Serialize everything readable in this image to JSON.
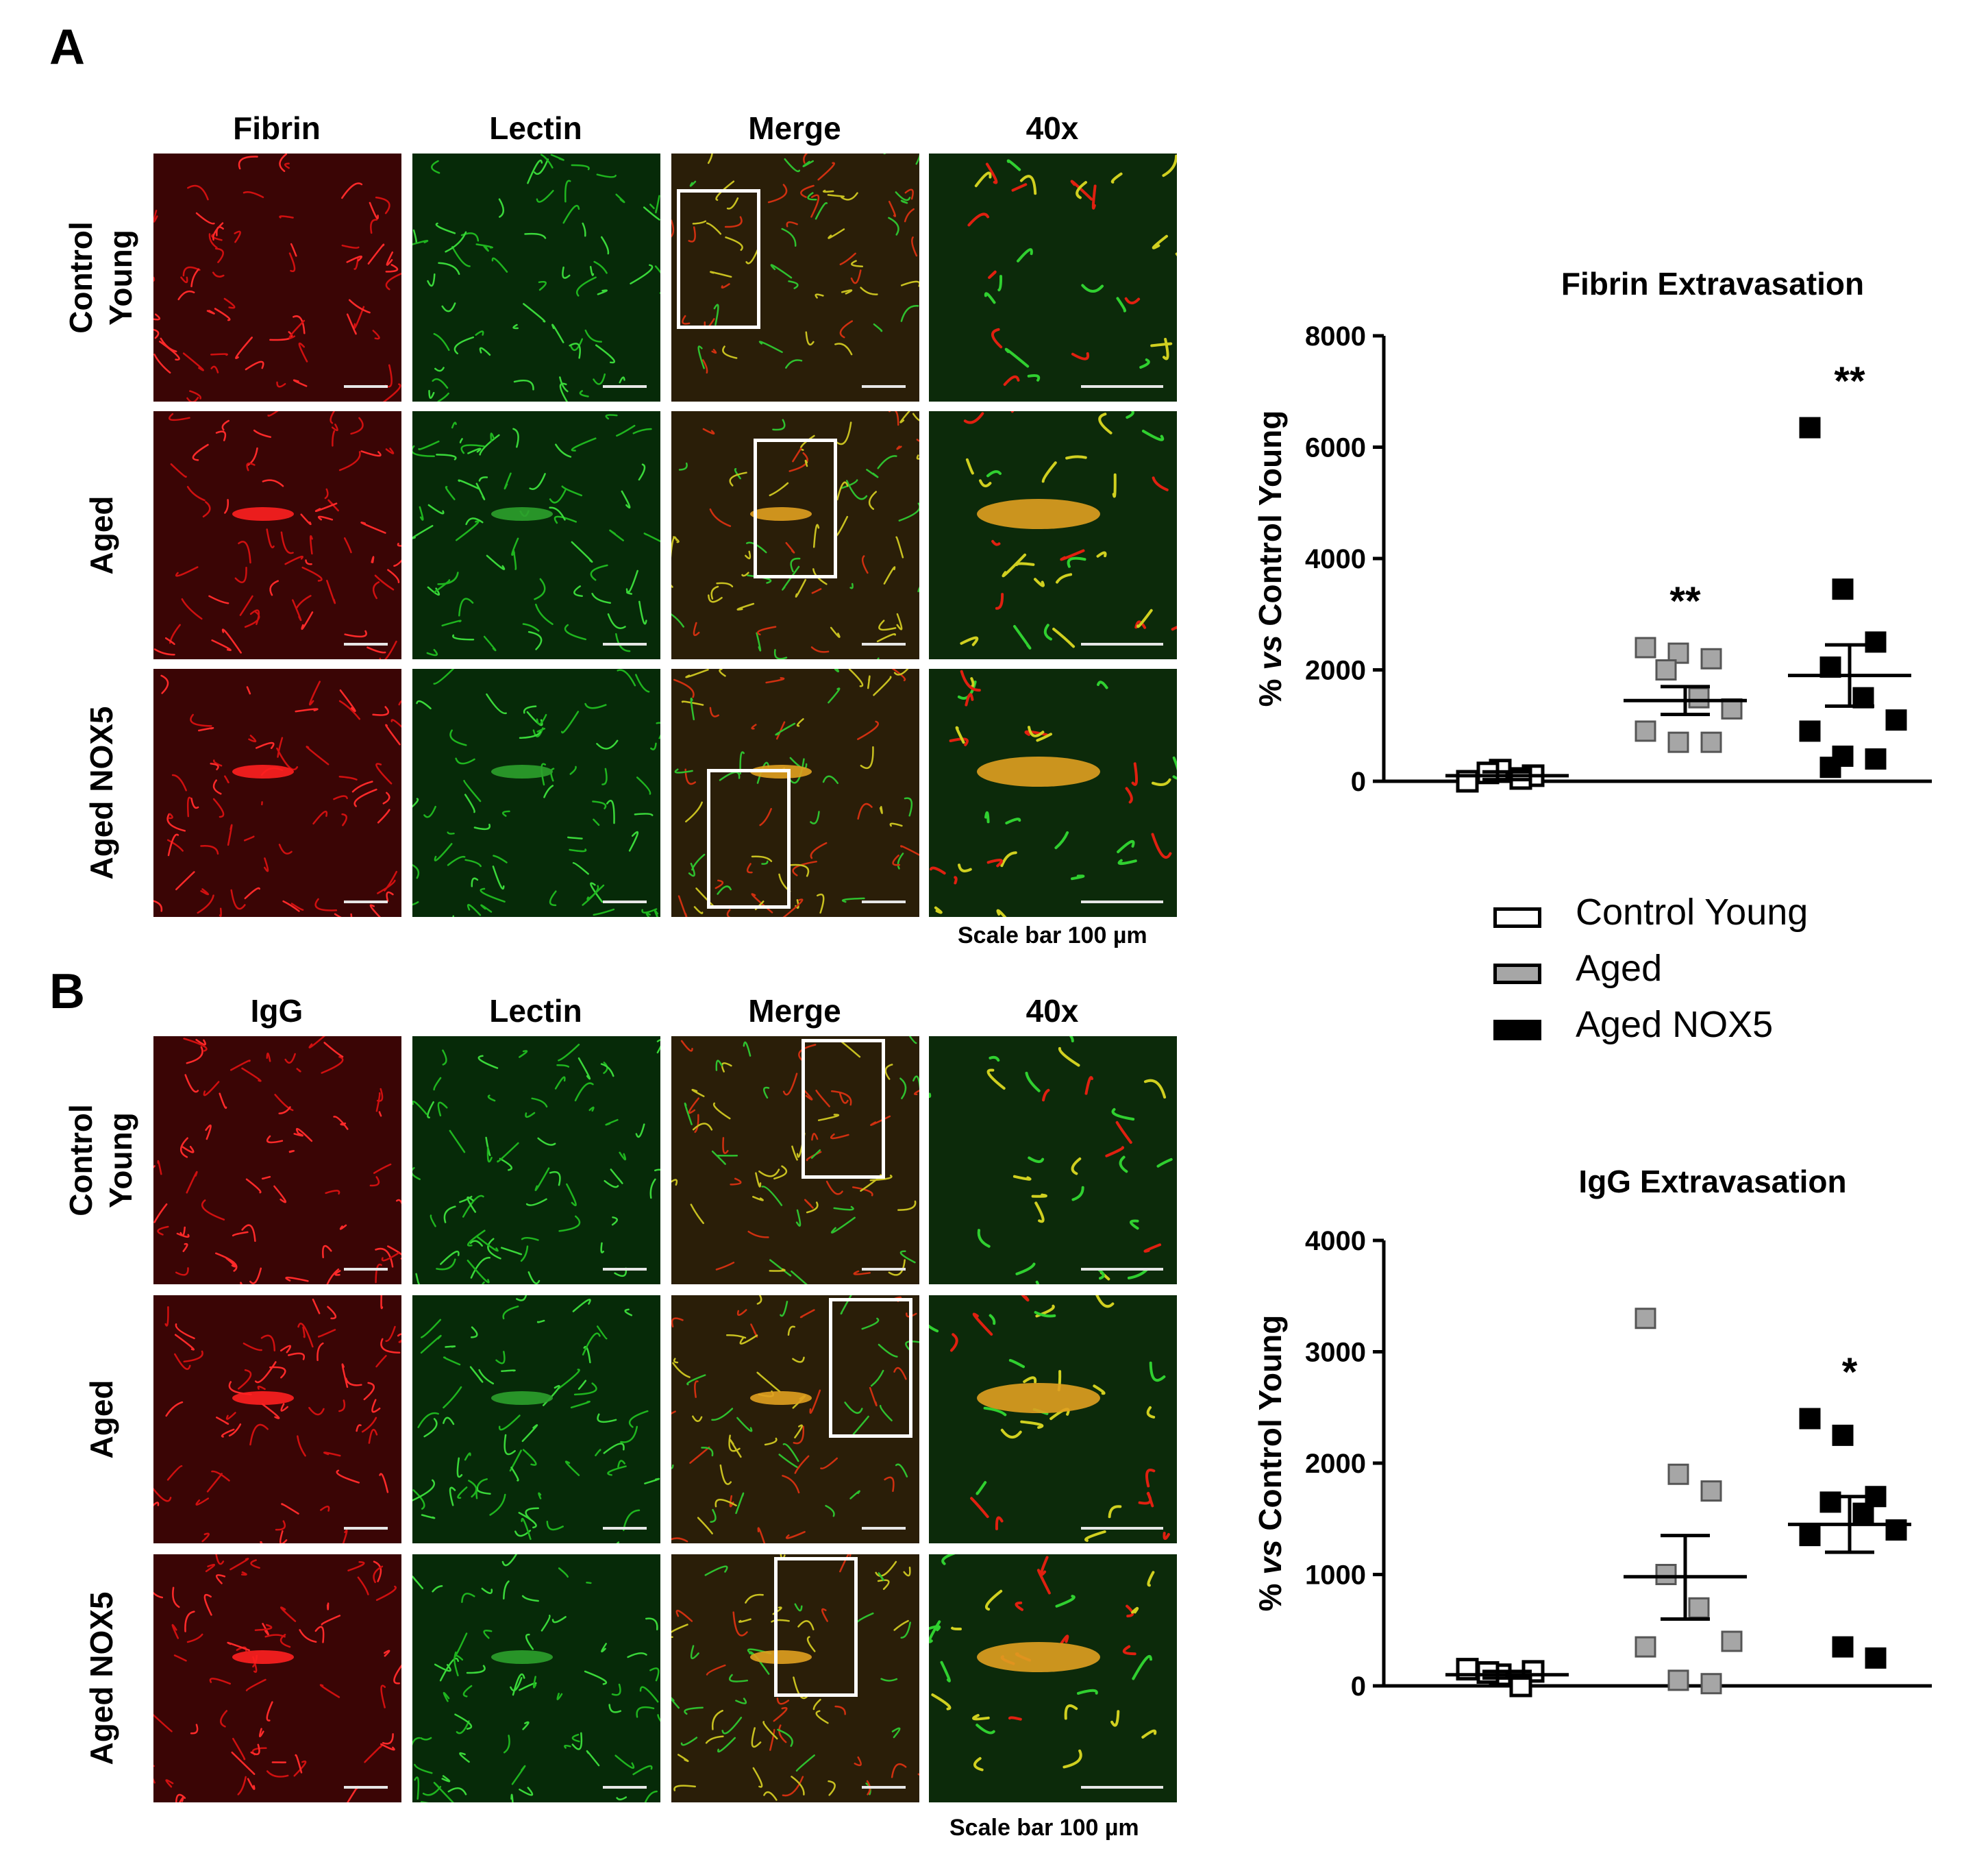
{
  "panelA": {
    "letter": "A",
    "columns": [
      "Fibrin",
      "Lectin",
      "Merge",
      "40x"
    ],
    "rows": [
      "Control\nYoung",
      "Aged",
      "Aged NOX5"
    ],
    "scale_bar": "Scale bar 100 µm"
  },
  "panelB": {
    "letter": "B",
    "columns": [
      "IgG",
      "Lectin",
      "Merge",
      "40x"
    ],
    "rows": [
      "Control\nYoung",
      "Aged",
      "Aged NOX5"
    ],
    "scale_bar": "Scale bar 100 µm"
  },
  "legend": [
    {
      "label": "Control Young",
      "color": "#ffffff"
    },
    {
      "label": "Aged",
      "color": "#a6a6a6"
    },
    {
      "label": "Aged NOX5",
      "color": "#000000"
    }
  ],
  "colors": {
    "red_channel": "#e01010",
    "green_channel": "#22c022",
    "merge_yellow": "#d8d020"
  },
  "chart_data": [
    {
      "type": "scatter",
      "title": "Fibrin Extravasation",
      "ylabel": "% vs Control Young",
      "ylim": [
        0,
        8000
      ],
      "yticks": [
        0,
        2000,
        4000,
        6000,
        8000
      ],
      "categories": [
        "Control Young",
        "Aged",
        "Aged NOX5"
      ],
      "series": [
        {
          "name": "Control Young",
          "points": [
            0,
            200,
            100,
            150,
            50
          ],
          "mean": 100,
          "sem_low": 30,
          "sem_high": 170
        },
        {
          "name": "Aged",
          "points": [
            2400,
            2300,
            2200,
            2000,
            1500,
            1300,
            900,
            700,
            700
          ],
          "mean": 1450,
          "sem_low": 1200,
          "sem_high": 1700
        },
        {
          "name": "Aged NOX5",
          "points": [
            6350,
            3450,
            2500,
            2050,
            1500,
            1100,
            900,
            450,
            400,
            250
          ],
          "mean": 1900,
          "sem_low": 1350,
          "sem_high": 2450
        }
      ],
      "annotations": [
        {
          "category": "Aged",
          "text": "**"
        },
        {
          "category": "Aged NOX5",
          "text": "**"
        }
      ]
    },
    {
      "type": "scatter",
      "title": "IgG Extravasation",
      "ylabel": "% vs Control Young",
      "ylim": [
        0,
        4000
      ],
      "yticks": [
        0,
        1000,
        2000,
        3000,
        4000
      ],
      "categories": [
        "Control Young",
        "Aged",
        "Aged NOX5"
      ],
      "series": [
        {
          "name": "Control Young",
          "points": [
            150,
            100,
            130,
            120,
            0
          ],
          "mean": 100,
          "sem_low": 70,
          "sem_high": 130
        },
        {
          "name": "Aged",
          "points": [
            3300,
            1900,
            1750,
            1000,
            700,
            400,
            350,
            50,
            20
          ],
          "mean": 980,
          "sem_low": 600,
          "sem_high": 1350
        },
        {
          "name": "Aged NOX5",
          "points": [
            2400,
            2250,
            1700,
            1650,
            1550,
            1400,
            1350,
            350,
            250
          ],
          "mean": 1450,
          "sem_low": 1200,
          "sem_high": 1700
        }
      ],
      "annotations": [
        {
          "category": "Aged NOX5",
          "text": "*"
        }
      ]
    }
  ]
}
